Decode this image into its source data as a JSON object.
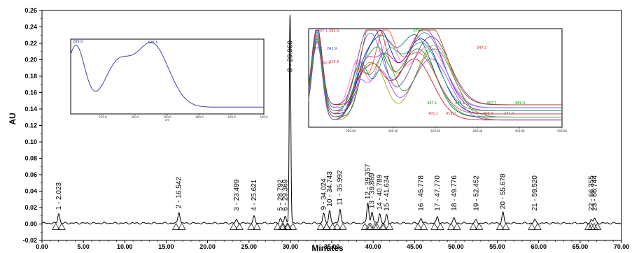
{
  "chart_data": {
    "type": "line",
    "xlabel": "Minutes",
    "ylabel": "AU",
    "xlim": [
      0,
      70
    ],
    "ylim": [
      -0.02,
      0.26
    ],
    "x_ticks": [
      "0.00",
      "5.00",
      "10.00",
      "15.00",
      "20.00",
      "25.00",
      "30.00",
      "35.00",
      "40.00",
      "45.00",
      "50.00",
      "55.00",
      "60.00",
      "65.00",
      "70.00"
    ],
    "y_ticks": [
      "-0.02",
      "0.00",
      "0.02",
      "0.04",
      "0.06",
      "0.08",
      "0.10",
      "0.12",
      "0.14",
      "0.16",
      "0.18",
      "0.20",
      "0.22",
      "0.24",
      "0.26"
    ],
    "grid": false,
    "line_color": "#000000",
    "peaks": [
      {
        "label": "1 - 2.023",
        "x": 2.023,
        "y": 0.012
      },
      {
        "label": "2 - 16.542",
        "x": 16.542,
        "y": 0.014
      },
      {
        "label": "3 - 23.499",
        "x": 23.499,
        "y": 0.004
      },
      {
        "label": "4 - 25.621",
        "x": 25.621,
        "y": 0.008
      },
      {
        "label": "5 - 28.792",
        "x": 28.792,
        "y": 0.006
      },
      {
        "label": "6 - 29.369",
        "x": 29.369,
        "y": 0.008
      },
      {
        "label": "8 - 29.960",
        "x": 29.96,
        "y": 0.255
      },
      {
        "label": "9 - 34.024",
        "x": 34.024,
        "y": 0.012
      },
      {
        "label": "10 - 34.743",
        "x": 34.743,
        "y": 0.016
      },
      {
        "label": "11 - 35.992",
        "x": 35.992,
        "y": 0.018
      },
      {
        "label": "12 - 39.357",
        "x": 39.357,
        "y": 0.025
      },
      {
        "label": "13 - 39.869",
        "x": 39.869,
        "y": 0.014
      },
      {
        "label": "14 - 40.789",
        "x": 40.789,
        "y": 0.012
      },
      {
        "label": "15 - 41.634",
        "x": 41.634,
        "y": 0.01
      },
      {
        "label": "16 - 45.778",
        "x": 45.778,
        "y": 0.006
      },
      {
        "label": "17 - 47.770",
        "x": 47.77,
        "y": 0.008
      },
      {
        "label": "18 - 49.776",
        "x": 49.776,
        "y": 0.006
      },
      {
        "label": "19 - 52.452",
        "x": 52.452,
        "y": 0.004
      },
      {
        "label": "20 - 55.678",
        "x": 55.678,
        "y": 0.013
      },
      {
        "label": "21 - 59.520",
        "x": 59.52,
        "y": 0.004
      },
      {
        "label": "22 - 66.355",
        "x": 66.355,
        "y": 0.004
      },
      {
        "label": "23 - 66.744",
        "x": 66.744,
        "y": 0.006
      }
    ],
    "insets": [
      {
        "name": "single-spectrum",
        "x_ticks": [
          "250.0",
          "300.0",
          "350.0",
          "400.0",
          "450.0",
          "500.0"
        ],
        "x_unit": "nm",
        "annotations": [
          {
            "text": "209.0",
            "color": "#3333aa"
          },
          {
            "text": "326.1",
            "color": "#3333aa"
          }
        ]
      },
      {
        "name": "overlay-spectra",
        "x_ticks": [
          "250.00",
          "300.00",
          "350.00",
          "400.00",
          "450.00",
          "500.00"
        ],
        "annotations": [
          {
            "text": "207.1",
            "color": "#cc33cc"
          },
          {
            "text": "292.0",
            "color": "#cc3333"
          },
          {
            "text": "287.2",
            "color": "#3333cc"
          },
          {
            "text": "314.6",
            "color": "#cc3333"
          },
          {
            "text": "329.3",
            "color": "#009900"
          },
          {
            "text": "447.1",
            "color": "#009900"
          },
          {
            "text": "467.7",
            "color": "#009900"
          },
          {
            "text": "489.3",
            "color": "#009900"
          },
          {
            "text": "401.1",
            "color": "#cc3333"
          },
          {
            "text": "419.2",
            "color": "#cc3333"
          },
          {
            "text": "455.0",
            "color": "#cc3333"
          },
          {
            "text": "477.4",
            "color": "#cc3333"
          },
          {
            "text": "347.3",
            "color": "#cc3333"
          },
          {
            "text": "266.2",
            "color": "#cc33cc"
          },
          {
            "text": "260.9",
            "color": "#cc3333"
          },
          {
            "text": "241.9",
            "color": "#3333cc"
          },
          {
            "text": "437.1",
            "color": "#009900"
          }
        ]
      }
    ]
  }
}
